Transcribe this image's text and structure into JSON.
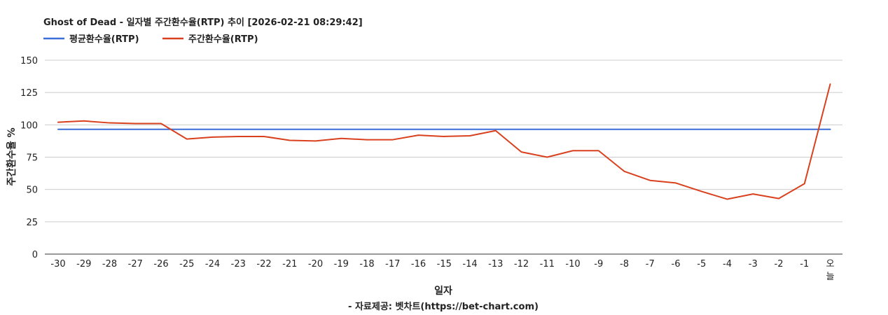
{
  "chart_data": {
    "type": "line",
    "title": "Ghost of Dead - 일자별 주간환수율(RTP) 추이 [2026-02-21 08:29:42]",
    "xlabel": "일자",
    "ylabel": "주간환수율 %",
    "footer": "- 자료제공: 벳차트(https://bet-chart.com)",
    "categories": [
      "-30",
      "-29",
      "-28",
      "-27",
      "-26",
      "-25",
      "-24",
      "-23",
      "-22",
      "-21",
      "-20",
      "-19",
      "-18",
      "-17",
      "-16",
      "-15",
      "-14",
      "-13",
      "-12",
      "-11",
      "-10",
      "-9",
      "-8",
      "-7",
      "-6",
      "-5",
      "-4",
      "-3",
      "-2",
      "-1",
      "오늘"
    ],
    "y_ticks": [
      "0",
      "25",
      "50",
      "75",
      "100",
      "125",
      "150"
    ],
    "ylim": [
      0,
      150
    ],
    "grid": true,
    "legend_position": "top-left",
    "series": [
      {
        "name": "평균환수율(RTP)",
        "color": "#3a6fd8",
        "values": [
          96.5,
          96.5,
          96.5,
          96.5,
          96.5,
          96.5,
          96.5,
          96.5,
          96.5,
          96.5,
          96.5,
          96.5,
          96.5,
          96.5,
          96.5,
          96.5,
          96.5,
          96.5,
          96.5,
          96.5,
          96.5,
          96.5,
          96.5,
          96.5,
          96.5,
          96.5,
          96.5,
          96.5,
          96.5,
          96.5,
          96.5
        ]
      },
      {
        "name": "주간환수율(RTP)",
        "color": "#d9411e",
        "values": [
          102,
          103,
          101.5,
          101,
          101,
          89,
          90.5,
          91,
          91,
          88,
          87.5,
          89.5,
          88.5,
          88.5,
          92,
          91,
          91.5,
          95.5,
          79,
          75,
          80,
          80,
          64,
          57,
          55,
          48.5,
          42.5,
          46.5,
          43,
          54.5,
          131.5
        ]
      }
    ]
  }
}
